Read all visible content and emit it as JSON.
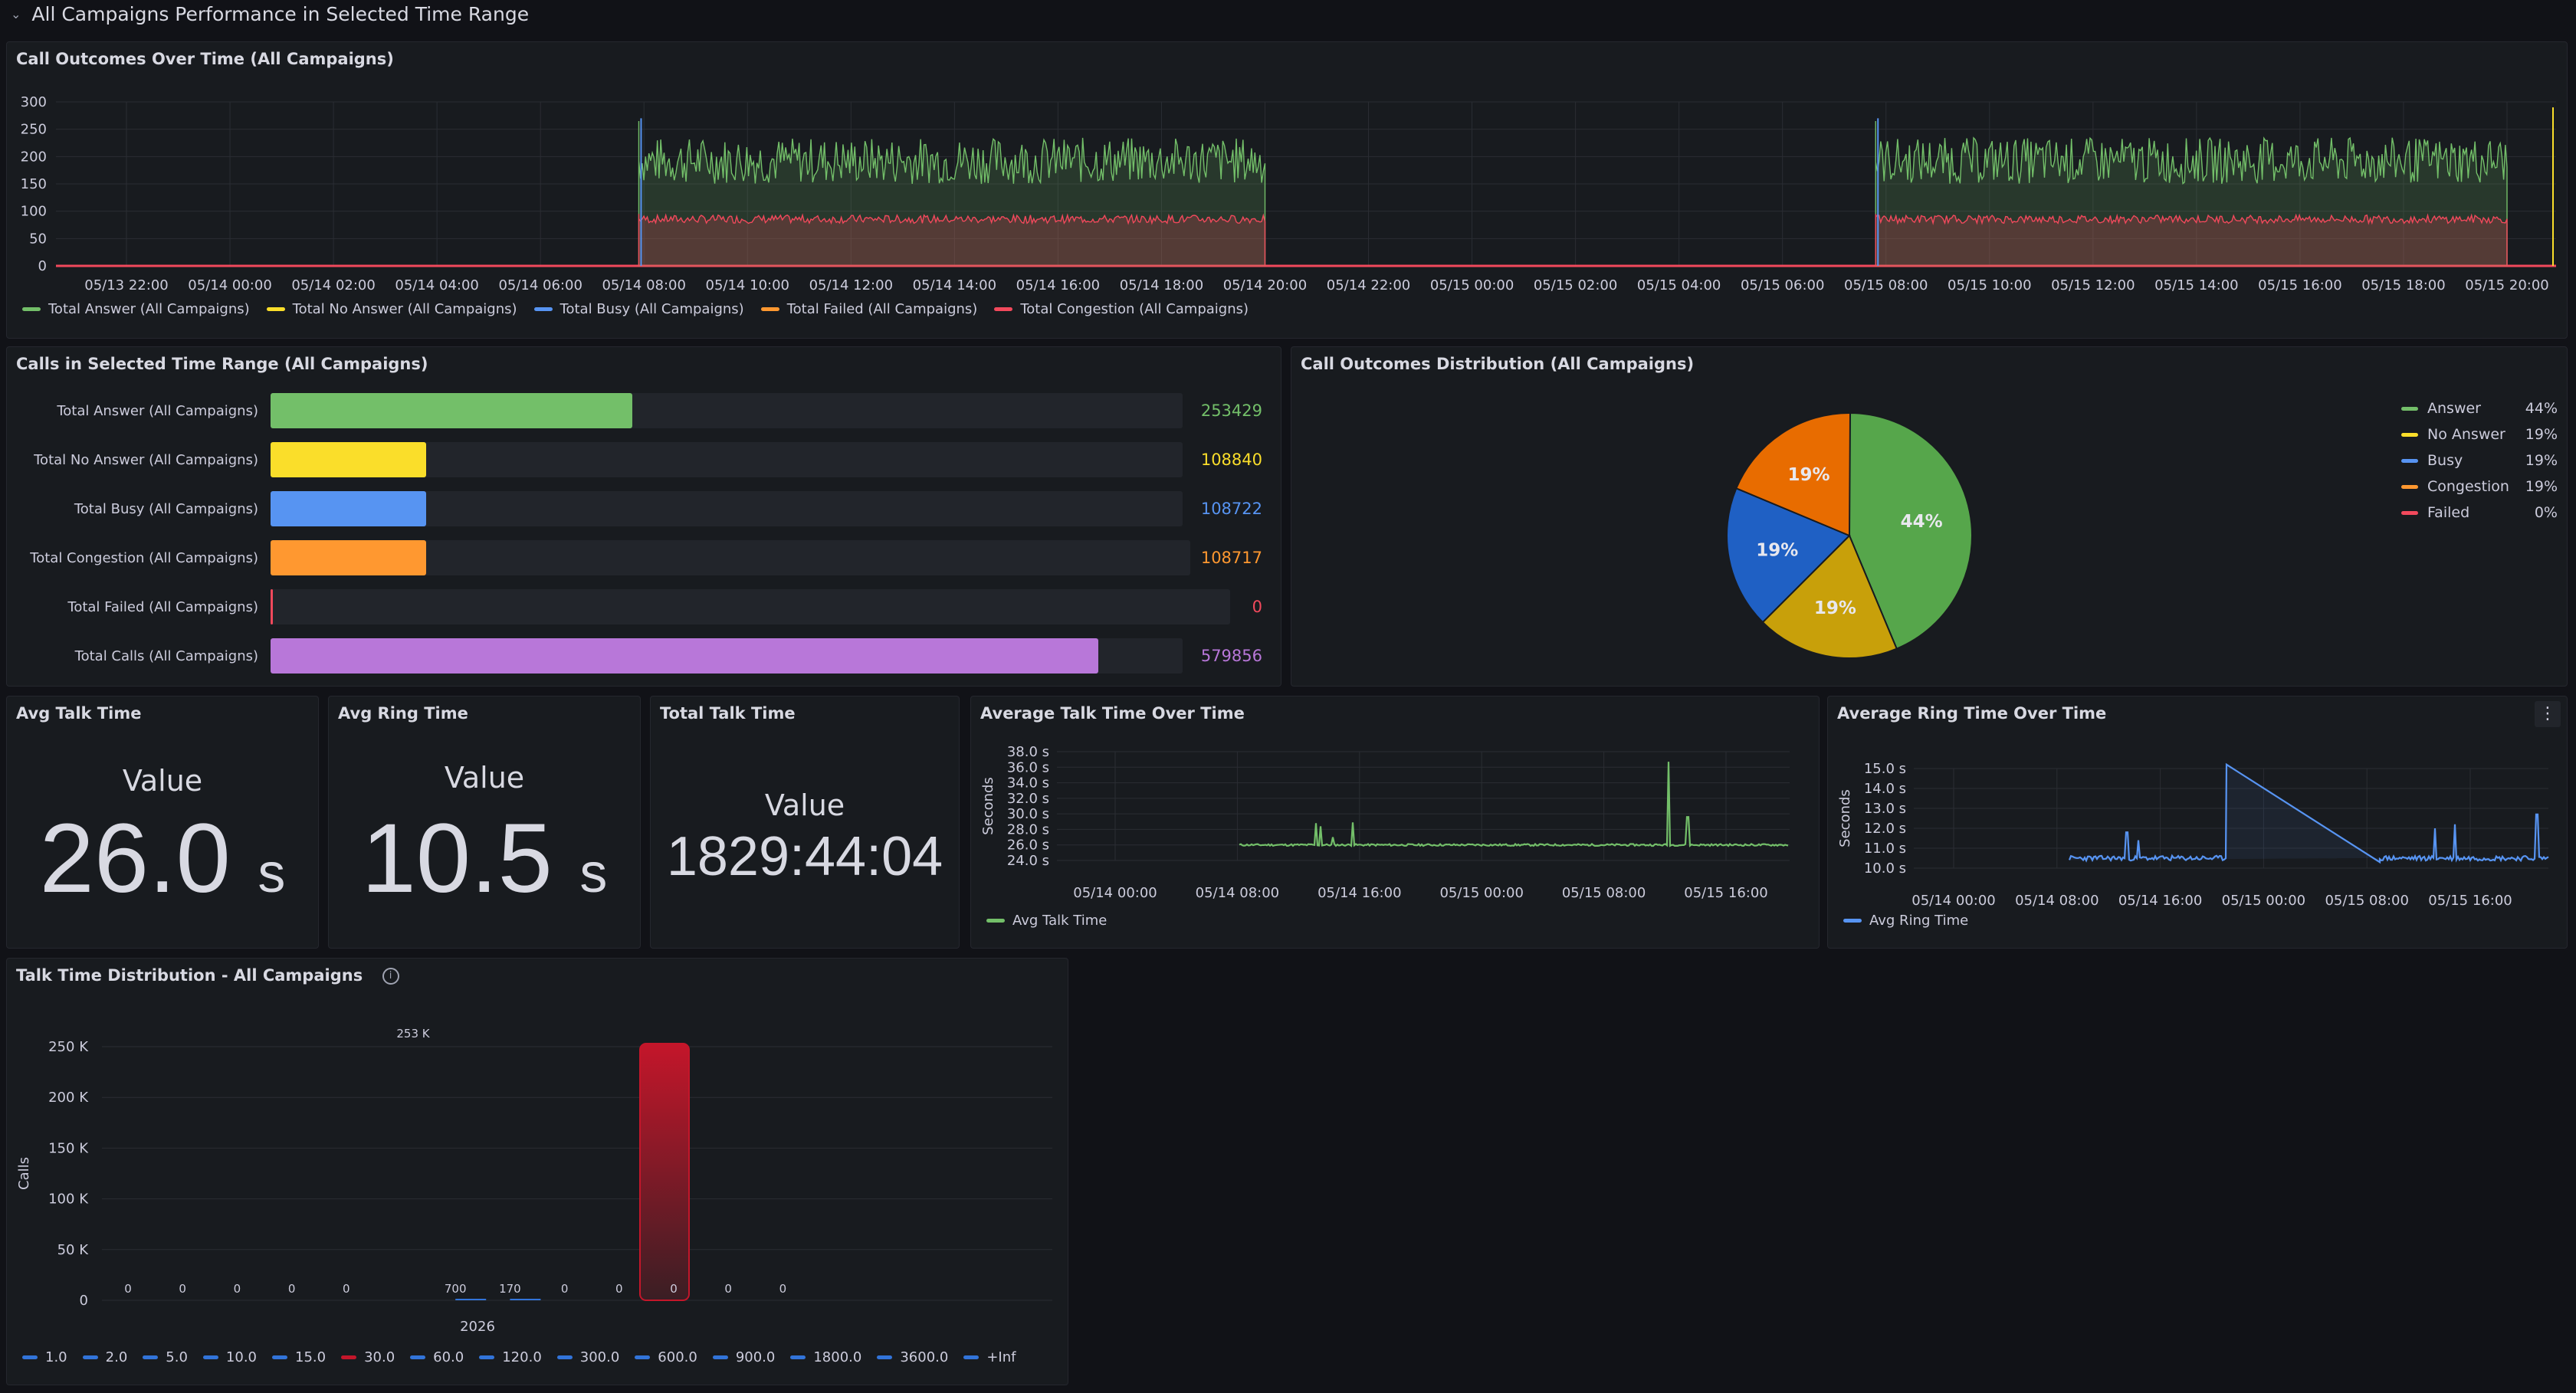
{
  "row_title": "All Campaigns Performance in Selected Time Range",
  "colors": {
    "answer": "#73bf69",
    "no_answer": "#fade2a",
    "busy": "#5794f2",
    "failed": "#ff9830",
    "congestion": "#f2495c",
    "purple": "#b877d9",
    "bg": "#111217",
    "panel": "#181b1f"
  },
  "call_outcomes": {
    "title": "Call Outcomes Over Time (All Campaigns)",
    "y_ticks": [
      "300",
      "250",
      "200",
      "150",
      "100",
      "50",
      "0"
    ],
    "x_ticks": [
      "05/13 22:00",
      "05/14 00:00",
      "05/14 02:00",
      "05/14 04:00",
      "05/14 06:00",
      "05/14 08:00",
      "05/14 10:00",
      "05/14 12:00",
      "05/14 14:00",
      "05/14 16:00",
      "05/14 18:00",
      "05/14 20:00",
      "05/14 22:00",
      "05/15 00:00",
      "05/15 02:00",
      "05/15 04:00",
      "05/15 06:00",
      "05/15 08:00",
      "05/15 10:00",
      "05/15 12:00",
      "05/15 14:00",
      "05/15 16:00",
      "05/15 18:00",
      "05/15 20:00"
    ],
    "legend": [
      {
        "label": "Total Answer (All Campaigns)",
        "color": "#73bf69"
      },
      {
        "label": "Total No Answer (All Campaigns)",
        "color": "#fade2a"
      },
      {
        "label": "Total Busy (All Campaigns)",
        "color": "#5794f2"
      },
      {
        "label": "Total Failed (All Campaigns)",
        "color": "#ff9830"
      },
      {
        "label": "Total Congestion (All Campaigns)",
        "color": "#f2495c"
      }
    ]
  },
  "calls_in_range": {
    "title": "Calls in Selected Time Range (All Campaigns)",
    "bars": [
      {
        "label": "Total Answer (All Campaigns)",
        "value": "253429",
        "fraction": 0.437,
        "color": "#73bf69"
      },
      {
        "label": "Total No Answer (All Campaigns)",
        "value": "108840",
        "fraction": 0.188,
        "color": "#fade2a"
      },
      {
        "label": "Total Busy (All Campaigns)",
        "value": "108722",
        "fraction": 0.188,
        "color": "#5794f2"
      },
      {
        "label": "Total Congestion (All Campaigns)",
        "value": "108717",
        "fraction": 0.188,
        "color": "#ff9830"
      },
      {
        "label": "Total Failed (All Campaigns)",
        "value": "0",
        "fraction": 0.0,
        "color": "#f2495c"
      },
      {
        "label": "Total Calls (All Campaigns)",
        "value": "579856",
        "fraction": 1.0,
        "color": "#b877d9"
      }
    ]
  },
  "distribution": {
    "title": "Call Outcomes Distribution (All Campaigns)",
    "slices": [
      {
        "label": "Answer",
        "percent": "44%",
        "fraction": 0.437,
        "color": "#73bf69"
      },
      {
        "label": "No Answer",
        "percent": "19%",
        "fraction": 0.188,
        "color": "#fade2a"
      },
      {
        "label": "Busy",
        "percent": "19%",
        "fraction": 0.188,
        "color": "#5794f2"
      },
      {
        "label": "Congestion",
        "percent": "19%",
        "fraction": 0.188,
        "color": "#ff9830"
      },
      {
        "label": "Failed",
        "percent": "0%",
        "fraction": 0.0,
        "color": "#f2495c"
      }
    ]
  },
  "stats": {
    "avg_talk": {
      "title": "Avg Talk Time",
      "name": "Value",
      "value": "26.0",
      "unit": "s"
    },
    "avg_ring": {
      "title": "Avg Ring Time",
      "name": "Value",
      "value": "10.5",
      "unit": "s"
    },
    "total_talk": {
      "title": "Total Talk Time",
      "name": "Value",
      "value": "1829:44:04"
    }
  },
  "avg_talk_over_time": {
    "title": "Average Talk Time Over Time",
    "ylabel": "Seconds",
    "y_ticks": [
      "38.0 s",
      "36.0 s",
      "34.0 s",
      "32.0 s",
      "30.0 s",
      "28.0 s",
      "26.0 s",
      "24.0 s"
    ],
    "x_ticks": [
      "05/14 00:00",
      "05/14 08:00",
      "05/14 16:00",
      "05/15 00:00",
      "05/15 08:00",
      "05/15 16:00"
    ],
    "legend": "Avg Talk Time"
  },
  "avg_ring_over_time": {
    "title": "Average Ring Time Over Time",
    "ylabel": "Seconds",
    "y_ticks": [
      "15.0 s",
      "14.0 s",
      "13.0 s",
      "12.0 s",
      "11.0 s",
      "10.0 s"
    ],
    "x_ticks": [
      "05/14 00:00",
      "05/14 08:00",
      "05/14 16:00",
      "05/15 00:00",
      "05/15 08:00",
      "05/15 16:00"
    ],
    "legend": "Avg Ring Time"
  },
  "talk_distribution": {
    "title": "Talk Time Distribution - All Campaigns",
    "ylabel": "Calls",
    "y_ticks": [
      "250 K",
      "200 K",
      "150 K",
      "100 K",
      "50 K",
      "0"
    ],
    "x_label": "2026",
    "buckets": [
      {
        "le": "1.0",
        "value": 0,
        "label": "0",
        "color": "#3274d9"
      },
      {
        "le": "2.0",
        "value": 0,
        "label": "0",
        "color": "#3274d9"
      },
      {
        "le": "5.0",
        "value": 0,
        "label": "0",
        "color": "#3274d9"
      },
      {
        "le": "10.0",
        "value": 0,
        "label": "0",
        "color": "#3274d9"
      },
      {
        "le": "15.0",
        "value": 0,
        "label": "0",
        "color": "#3274d9"
      },
      {
        "le": "30.0",
        "value": 253000,
        "label": "253 K",
        "color": "#c4162a"
      },
      {
        "le": "60.0",
        "value": 700,
        "label": "700",
        "color": "#3274d9"
      },
      {
        "le": "120.0",
        "value": 170,
        "label": "170",
        "color": "#3274d9"
      },
      {
        "le": "300.0",
        "value": 0,
        "label": "0",
        "color": "#3274d9"
      },
      {
        "le": "600.0",
        "value": 0,
        "label": "0",
        "color": "#3274d9"
      },
      {
        "le": "900.0",
        "value": 0,
        "label": "0",
        "color": "#3274d9"
      },
      {
        "le": "1800.0",
        "value": 0,
        "label": "0",
        "color": "#3274d9"
      },
      {
        "le": "3600.0",
        "value": 0,
        "label": "0",
        "color": "#3274d9"
      },
      {
        "le": "+Inf",
        "value": 0,
        "label": "",
        "color": "#3274d9"
      }
    ]
  }
}
